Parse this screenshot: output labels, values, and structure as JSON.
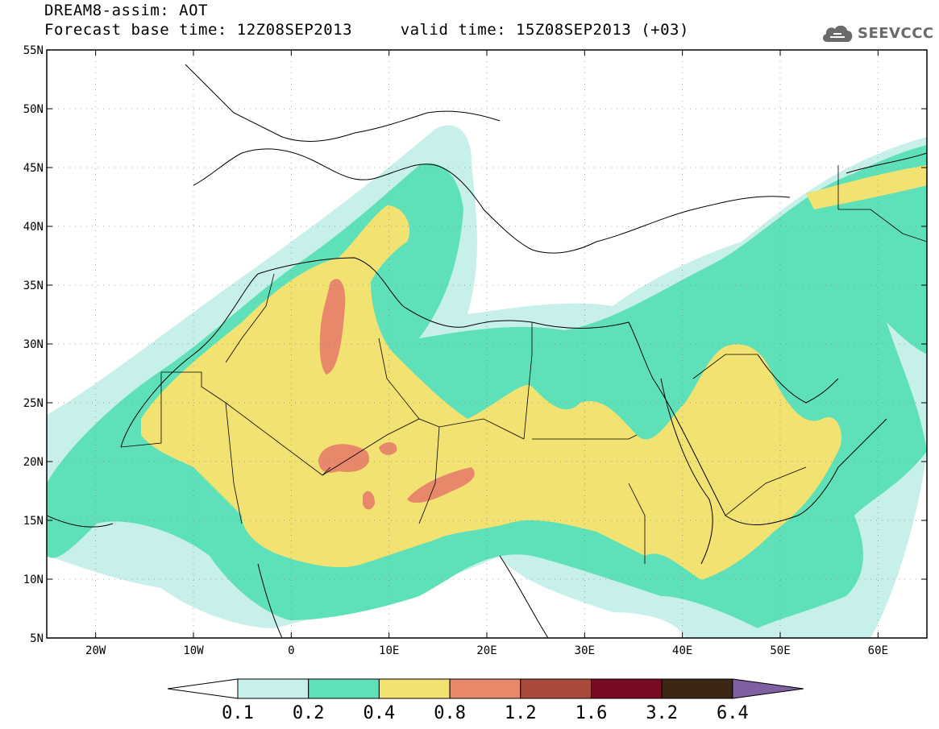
{
  "header": {
    "title_line1": "DREAM8-assim: AOT",
    "title_line2": "Forecast base time: 12Z08SEP2013     valid time: 15Z08SEP2013 (+03)",
    "logo_text": "SEEVCCC"
  },
  "map": {
    "lon_range": [
      -25,
      65
    ],
    "lat_range": [
      5,
      55
    ],
    "lat_ticks": [
      {
        "value": 55,
        "label": "55N"
      },
      {
        "value": 50,
        "label": "50N"
      },
      {
        "value": 45,
        "label": "45N"
      },
      {
        "value": 40,
        "label": "40N"
      },
      {
        "value": 35,
        "label": "35N"
      },
      {
        "value": 30,
        "label": "30N"
      },
      {
        "value": 25,
        "label": "25N"
      },
      {
        "value": 20,
        "label": "20N"
      },
      {
        "value": 15,
        "label": "15N"
      },
      {
        "value": 10,
        "label": "10N"
      },
      {
        "value": 5,
        "label": "5N"
      }
    ],
    "lon_ticks": [
      {
        "value": -20,
        "label": "20W"
      },
      {
        "value": -10,
        "label": "10W"
      },
      {
        "value": 0,
        "label": "0"
      },
      {
        "value": 10,
        "label": "10E"
      },
      {
        "value": 20,
        "label": "20E"
      },
      {
        "value": 30,
        "label": "30E"
      },
      {
        "value": 40,
        "label": "40E"
      },
      {
        "value": 50,
        "label": "50E"
      },
      {
        "value": 60,
        "label": "60E"
      }
    ],
    "grid": true
  },
  "colorbar": {
    "under_color": "#ffffff",
    "over_color": "#8060a0",
    "bins": [
      {
        "color": "#c8f0ea"
      },
      {
        "color": "#5ee0b8"
      },
      {
        "color": "#f2e272"
      },
      {
        "color": "#e8886a"
      },
      {
        "color": "#a84a3c"
      },
      {
        "color": "#7a0a24"
      },
      {
        "color": "#3c2614"
      }
    ],
    "labels": [
      "0.1",
      "0.2",
      "0.4",
      "0.8",
      "1.2",
      "1.6",
      "3.2",
      "6.4"
    ]
  }
}
